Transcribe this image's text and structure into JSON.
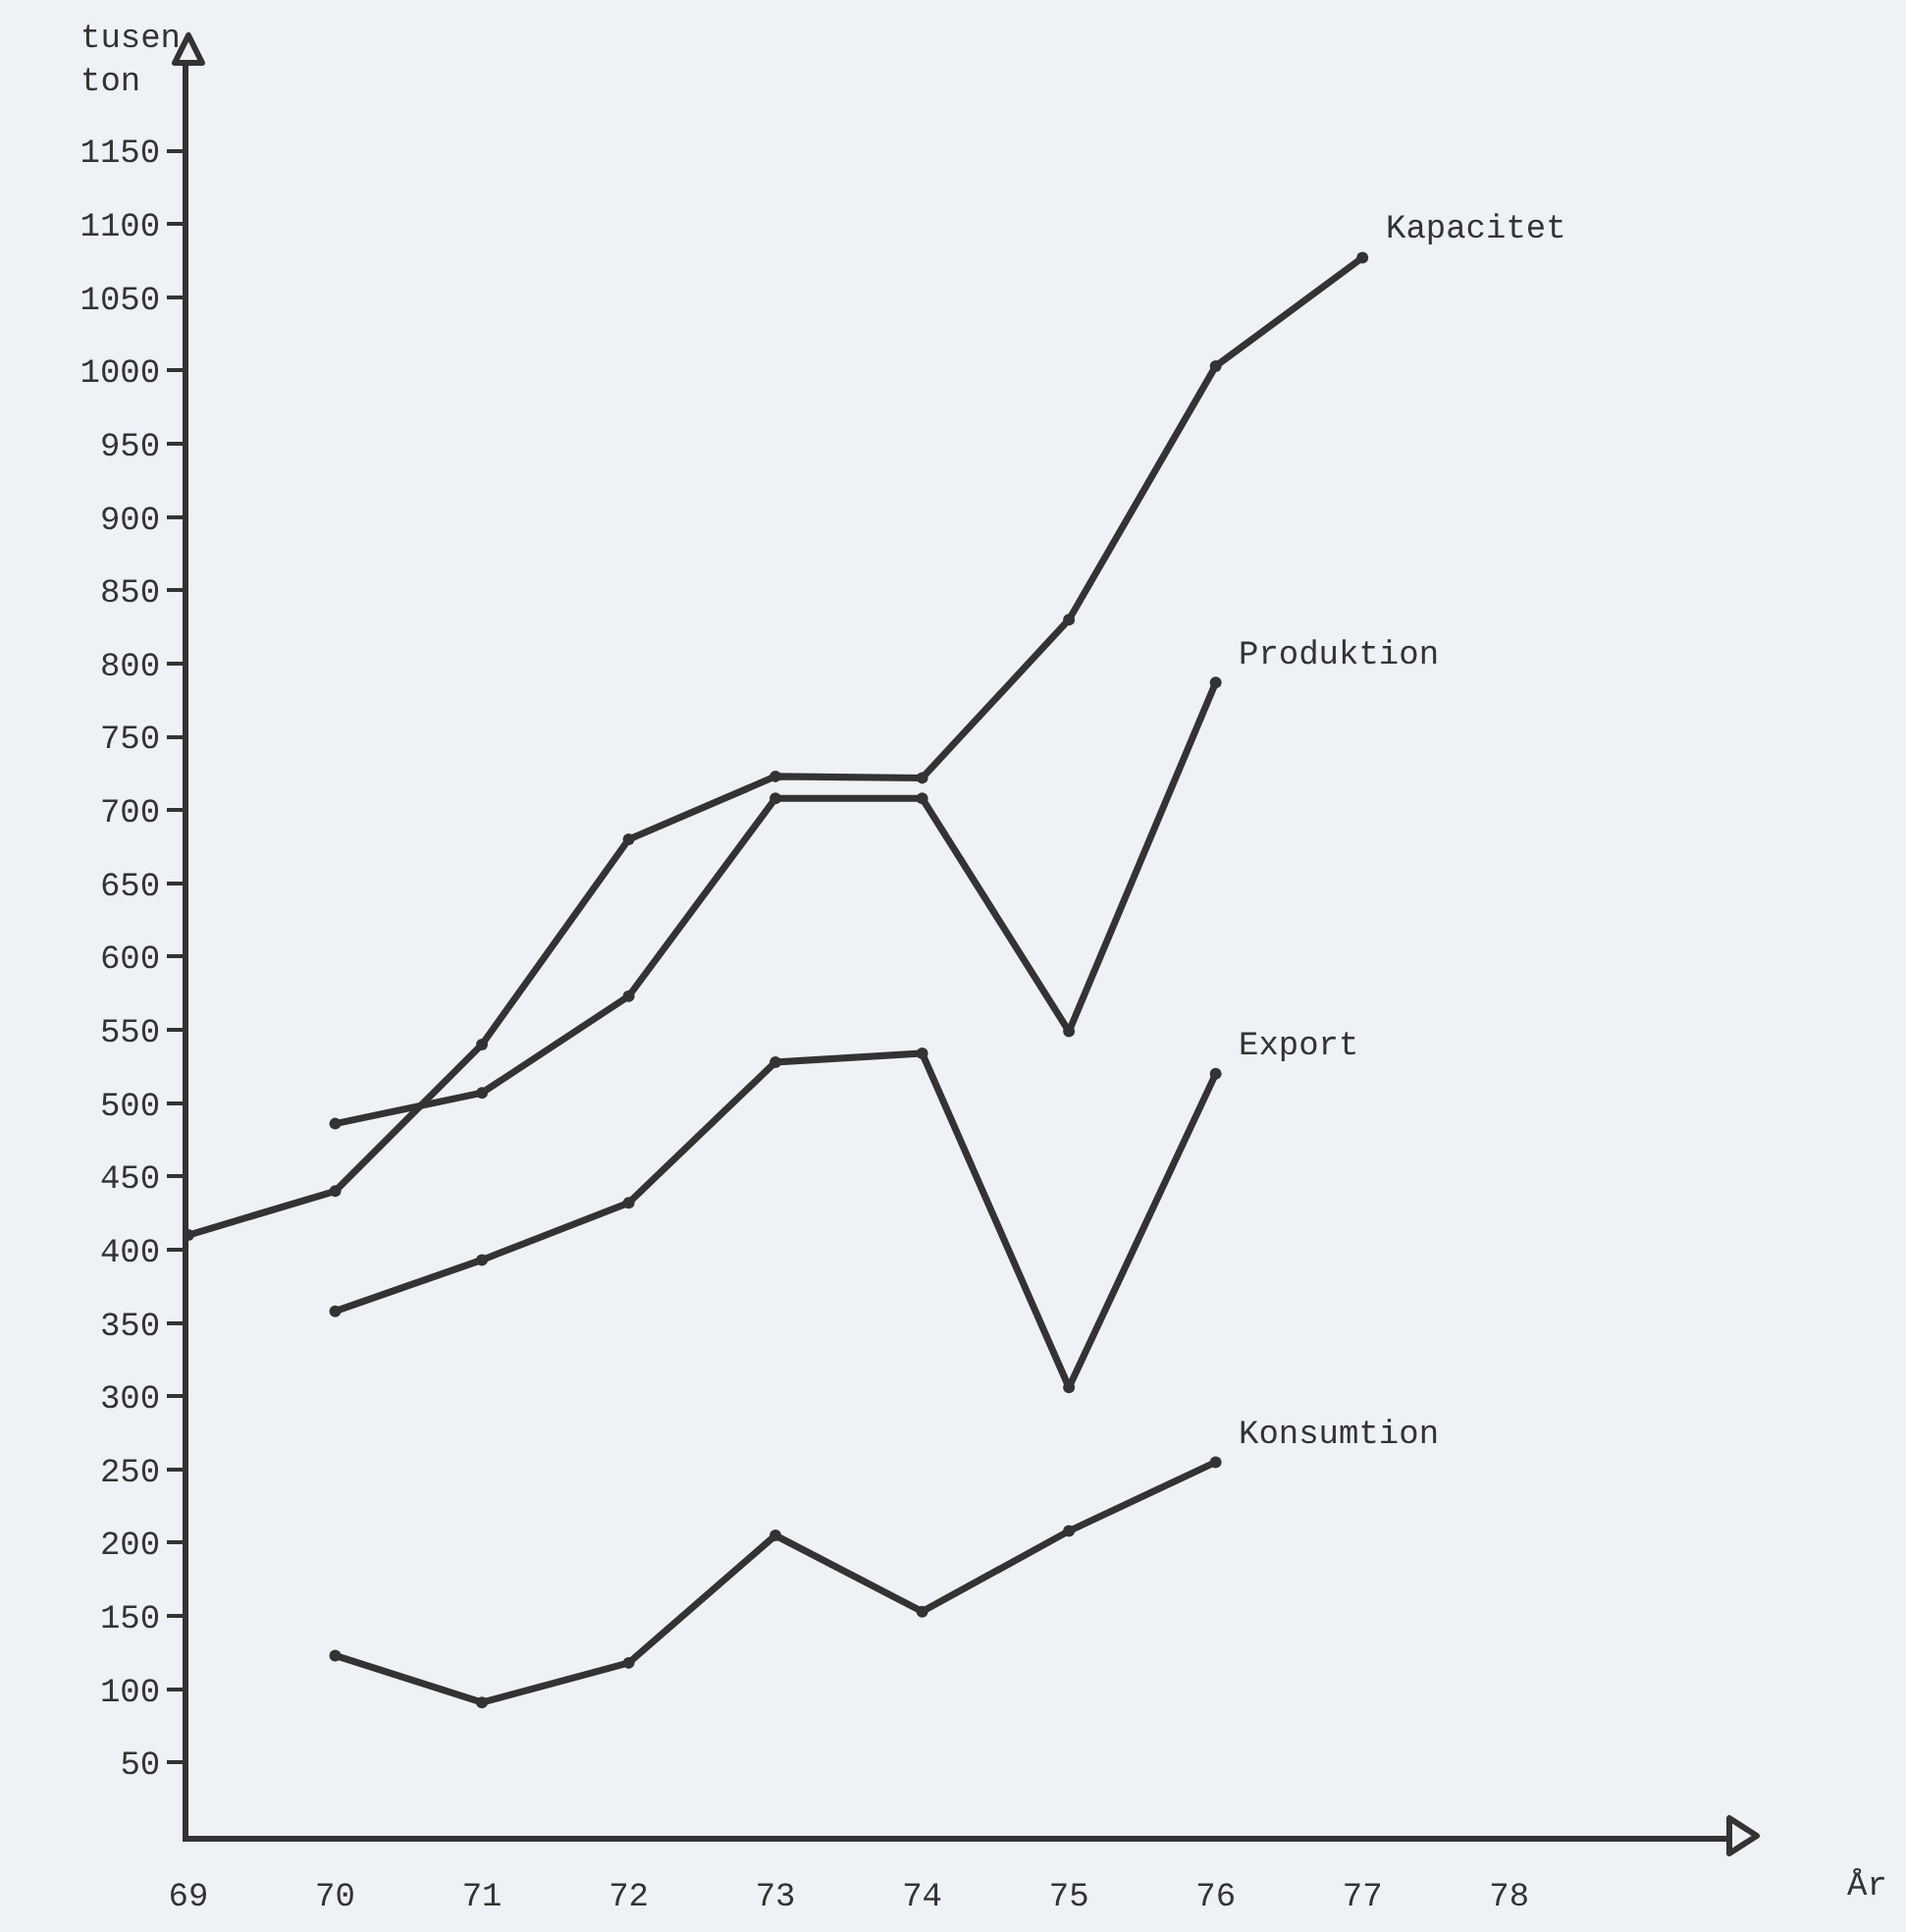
{
  "chart_data": {
    "type": "line",
    "xlabel": "År",
    "ylabel": "tusen ton",
    "x": [
      69,
      70,
      71,
      72,
      73,
      74,
      75,
      76,
      77
    ],
    "series": [
      {
        "name": "Kapacitet",
        "color": "#333333",
        "values": [
          410,
          440,
          540,
          680,
          723,
          722,
          830,
          1003,
          1077
        ]
      },
      {
        "name": "Produktion",
        "color": "#333333",
        "x": [
          70,
          71,
          72,
          73,
          74,
          75,
          76
        ],
        "values": [
          486,
          507,
          573,
          708,
          708,
          549,
          787
        ]
      },
      {
        "name": "Export",
        "color": "#333333",
        "x": [
          70,
          71,
          72,
          73,
          74,
          75,
          76
        ],
        "values": [
          358,
          393,
          432,
          528,
          534,
          306,
          520
        ]
      },
      {
        "name": "Konsumtion",
        "color": "#333333",
        "x": [
          70,
          71,
          72,
          73,
          74,
          75,
          76
        ],
        "values": [
          123,
          91,
          118,
          205,
          153,
          208,
          255
        ]
      }
    ],
    "xlim": [
      69,
      79.5
    ],
    "xticks": [
      69,
      70,
      71,
      72,
      73,
      74,
      75,
      76,
      77,
      78
    ],
    "ylim": [
      0,
      1210
    ],
    "yticks": [
      50,
      100,
      150,
      200,
      250,
      300,
      350,
      400,
      450,
      500,
      550,
      600,
      650,
      700,
      750,
      800,
      850,
      900,
      950,
      1000,
      1050,
      1100,
      1150
    ],
    "grid": false,
    "legend": false,
    "marker": "circle",
    "line_style": "solid"
  }
}
